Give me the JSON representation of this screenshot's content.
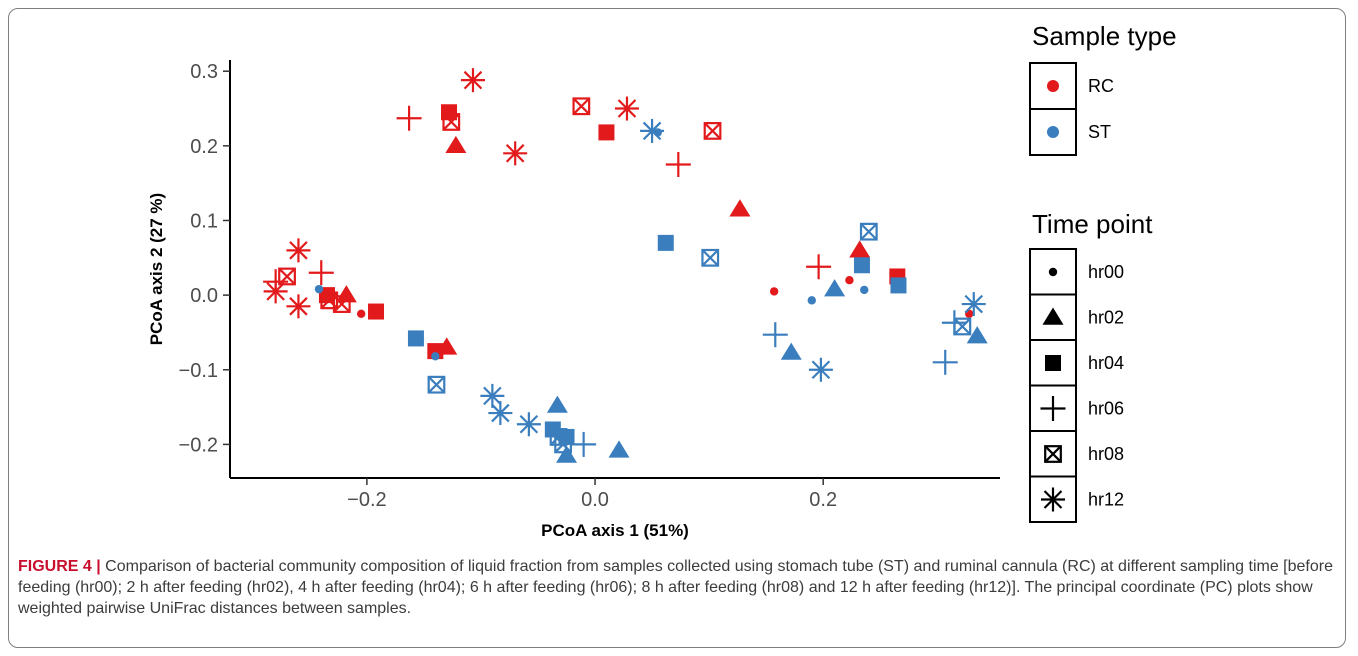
{
  "chart_data": {
    "type": "scatter",
    "xlabel": "PCoA axis 1 (51%)",
    "ylabel": "PCoA axis 2 (27 %)",
    "xticks": [
      -0.2,
      0.0,
      0.2
    ],
    "xtick_labels": [
      "−0.2",
      "0.0",
      "0.2"
    ],
    "yticks": [
      -0.2,
      -0.1,
      0.0,
      0.1,
      0.2,
      0.3
    ],
    "ytick_labels": [
      "−0.2",
      "−0.1",
      "0.0",
      "0.1",
      "0.2",
      "0.3"
    ],
    "xlim": [
      -0.32,
      0.355
    ],
    "ylim": [
      -0.245,
      0.315
    ],
    "grid": false,
    "legend_placement": "right",
    "colors": {
      "RC": "#e31a1c",
      "ST": "#3a7ebd"
    },
    "legend": {
      "sample_type_title": "Sample type",
      "sample_types": [
        "RC",
        "ST"
      ],
      "time_point_title": "Time point",
      "time_points": [
        "hr00",
        "hr02",
        "hr04",
        "hr06",
        "hr08",
        "hr12"
      ]
    },
    "points": [
      {
        "type": "RC",
        "time": "hr00",
        "x": -0.205,
        "y": -0.025
      },
      {
        "type": "RC",
        "time": "hr00",
        "x": 0.157,
        "y": 0.005
      },
      {
        "type": "RC",
        "time": "hr00",
        "x": 0.223,
        "y": 0.02
      },
      {
        "type": "RC",
        "time": "hr00",
        "x": 0.328,
        "y": -0.025
      },
      {
        "type": "RC",
        "time": "hr02",
        "x": -0.122,
        "y": 0.2
      },
      {
        "type": "RC",
        "time": "hr02",
        "x": -0.218,
        "y": 0.0
      },
      {
        "type": "RC",
        "time": "hr02",
        "x": -0.13,
        "y": -0.07
      },
      {
        "type": "RC",
        "time": "hr02",
        "x": 0.127,
        "y": 0.115
      },
      {
        "type": "RC",
        "time": "hr02",
        "x": 0.232,
        "y": 0.06
      },
      {
        "type": "RC",
        "time": "hr04",
        "x": -0.128,
        "y": 0.245
      },
      {
        "type": "RC",
        "time": "hr04",
        "x": 0.01,
        "y": 0.218
      },
      {
        "type": "RC",
        "time": "hr04",
        "x": -0.235,
        "y": 0.0
      },
      {
        "type": "RC",
        "time": "hr04",
        "x": -0.192,
        "y": -0.022
      },
      {
        "type": "RC",
        "time": "hr04",
        "x": -0.14,
        "y": -0.075
      },
      {
        "type": "RC",
        "time": "hr04",
        "x": 0.265,
        "y": 0.025
      },
      {
        "type": "RC",
        "time": "hr06",
        "x": -0.163,
        "y": 0.237
      },
      {
        "type": "RC",
        "time": "hr06",
        "x": 0.073,
        "y": 0.175
      },
      {
        "type": "RC",
        "time": "hr06",
        "x": -0.28,
        "y": 0.018
      },
      {
        "type": "RC",
        "time": "hr06",
        "x": -0.24,
        "y": 0.03
      },
      {
        "type": "RC",
        "time": "hr06",
        "x": 0.196,
        "y": 0.038
      },
      {
        "type": "RC",
        "time": "hr08",
        "x": -0.126,
        "y": 0.232
      },
      {
        "type": "RC",
        "time": "hr08",
        "x": -0.012,
        "y": 0.253
      },
      {
        "type": "RC",
        "time": "hr08",
        "x": 0.103,
        "y": 0.22
      },
      {
        "type": "RC",
        "time": "hr08",
        "x": -0.27,
        "y": 0.025
      },
      {
        "type": "RC",
        "time": "hr08",
        "x": -0.233,
        "y": -0.007
      },
      {
        "type": "RC",
        "time": "hr08",
        "x": -0.222,
        "y": -0.012
      },
      {
        "type": "RC",
        "time": "hr12",
        "x": -0.107,
        "y": 0.288
      },
      {
        "type": "RC",
        "time": "hr12",
        "x": 0.028,
        "y": 0.25
      },
      {
        "type": "RC",
        "time": "hr12",
        "x": -0.07,
        "y": 0.19
      },
      {
        "type": "RC",
        "time": "hr12",
        "x": -0.26,
        "y": 0.06
      },
      {
        "type": "RC",
        "time": "hr12",
        "x": -0.28,
        "y": 0.005
      },
      {
        "type": "RC",
        "time": "hr12",
        "x": -0.26,
        "y": -0.015
      },
      {
        "type": "ST",
        "time": "hr00",
        "x": 0.055,
        "y": 0.218
      },
      {
        "type": "ST",
        "time": "hr00",
        "x": -0.242,
        "y": 0.008
      },
      {
        "type": "ST",
        "time": "hr00",
        "x": -0.14,
        "y": -0.082
      },
      {
        "type": "ST",
        "time": "hr00",
        "x": 0.19,
        "y": -0.007
      },
      {
        "type": "ST",
        "time": "hr00",
        "x": 0.236,
        "y": 0.007
      },
      {
        "type": "ST",
        "time": "hr02",
        "x": -0.033,
        "y": -0.148
      },
      {
        "type": "ST",
        "time": "hr02",
        "x": -0.025,
        "y": -0.215
      },
      {
        "type": "ST",
        "time": "hr02",
        "x": 0.021,
        "y": -0.208
      },
      {
        "type": "ST",
        "time": "hr02",
        "x": 0.172,
        "y": -0.077
      },
      {
        "type": "ST",
        "time": "hr02",
        "x": 0.21,
        "y": 0.008
      },
      {
        "type": "ST",
        "time": "hr02",
        "x": 0.335,
        "y": -0.055
      },
      {
        "type": "ST",
        "time": "hr04",
        "x": 0.062,
        "y": 0.07
      },
      {
        "type": "ST",
        "time": "hr04",
        "x": -0.157,
        "y": -0.058
      },
      {
        "type": "ST",
        "time": "hr04",
        "x": -0.037,
        "y": -0.18
      },
      {
        "type": "ST",
        "time": "hr04",
        "x": -0.025,
        "y": -0.19
      },
      {
        "type": "ST",
        "time": "hr04",
        "x": 0.234,
        "y": 0.04
      },
      {
        "type": "ST",
        "time": "hr04",
        "x": 0.266,
        "y": 0.013
      },
      {
        "type": "ST",
        "time": "hr06",
        "x": -0.01,
        "y": -0.2
      },
      {
        "type": "ST",
        "time": "hr06",
        "x": 0.158,
        "y": -0.053
      },
      {
        "type": "ST",
        "time": "hr06",
        "x": 0.307,
        "y": -0.09
      },
      {
        "type": "ST",
        "time": "hr06",
        "x": 0.315,
        "y": -0.037
      },
      {
        "type": "ST",
        "time": "hr08",
        "x": 0.101,
        "y": 0.05
      },
      {
        "type": "ST",
        "time": "hr08",
        "x": 0.24,
        "y": 0.085
      },
      {
        "type": "ST",
        "time": "hr08",
        "x": -0.139,
        "y": -0.12
      },
      {
        "type": "ST",
        "time": "hr08",
        "x": -0.032,
        "y": -0.19
      },
      {
        "type": "ST",
        "time": "hr08",
        "x": -0.028,
        "y": -0.2
      },
      {
        "type": "ST",
        "time": "hr08",
        "x": 0.322,
        "y": -0.042
      },
      {
        "type": "ST",
        "time": "hr12",
        "x": 0.05,
        "y": 0.22
      },
      {
        "type": "ST",
        "time": "hr12",
        "x": -0.09,
        "y": -0.135
      },
      {
        "type": "ST",
        "time": "hr12",
        "x": -0.083,
        "y": -0.158
      },
      {
        "type": "ST",
        "time": "hr12",
        "x": -0.058,
        "y": -0.173
      },
      {
        "type": "ST",
        "time": "hr12",
        "x": 0.198,
        "y": -0.1
      },
      {
        "type": "ST",
        "time": "hr12",
        "x": 0.332,
        "y": -0.012
      }
    ]
  },
  "caption": {
    "label": "FIGURE 4 |",
    "text": "Comparison of bacterial community composition of liquid fraction from samples collected using stomach tube (ST) and ruminal cannula (RC) at different sampling time [before feeding (hr00); 2 h after feeding (hr02), 4 h after feeding (hr04); 6 h after feeding (hr06); 8 h after feeding (hr08) and 12 h after feeding (hr12)]. The principal coordinate (PC) plots show weighted pairwise UniFrac distances between samples."
  }
}
